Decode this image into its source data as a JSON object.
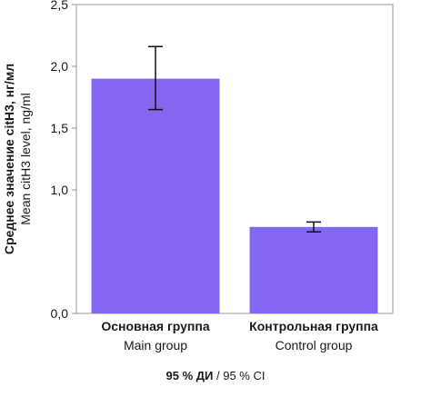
{
  "chart_data": {
    "type": "bar",
    "categories": [
      {
        "ru": "Основная группа",
        "en": "Main group"
      },
      {
        "ru": "Контрольная группа",
        "en": "Control group"
      }
    ],
    "series": [
      {
        "values": [
          1.9,
          0.7
        ],
        "error_low": [
          1.65,
          0.66
        ],
        "error_high": [
          2.16,
          0.74
        ]
      }
    ],
    "ylabel": {
      "ru": "Среднее значение citH3, нг/мл",
      "en": "Mean citH3 level, ng/ml"
    },
    "ylim": [
      0,
      2.5
    ],
    "yticks": [
      "0,0",
      "1,0",
      "1,5",
      "2,0",
      "2,5"
    ],
    "ytick_values": [
      0,
      1.0,
      1.5,
      2.0,
      2.5
    ],
    "footnote": {
      "ru": "95 % ДИ",
      "sep": " / ",
      "en": "95 % CI"
    },
    "grid": false,
    "colors": {
      "bar": "#8466F0",
      "error": "#111111",
      "axis": "#999999"
    }
  }
}
